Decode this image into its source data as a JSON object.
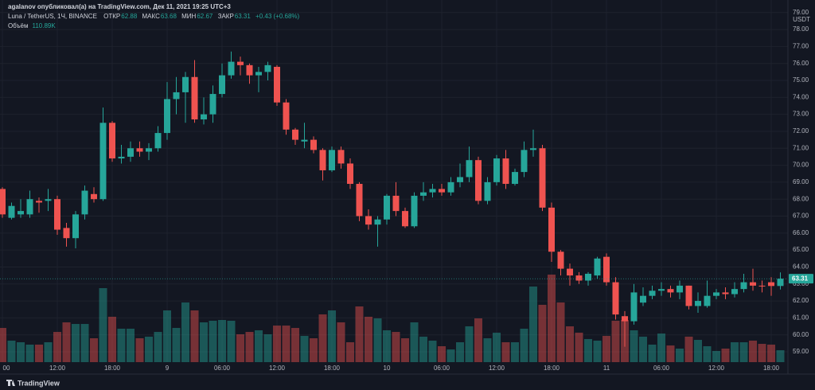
{
  "chart_data": {
    "type": "candlestick",
    "author_line": "agalanov опубликовал(а) на TradingView.com, Дек 11, 2021 19:25 UTC+3",
    "symbol": "Luna / TetherUS, 1Ч, BINANCE",
    "open_label": "ОТКР",
    "high_label": "МАКС",
    "low_label": "МИН",
    "close_label": "ЗАКР",
    "change_label": "+0.43 (+0.68%)",
    "volume_title": "Объём",
    "volume_label": "110.89K",
    "currency": "USDT",
    "logo": "TradingView",
    "up_color": "#26a69a",
    "down_color": "#ef5350",
    "grid": true,
    "ylim": [
      58.39,
      79.74
    ],
    "yticks": [
      {
        "value": 59,
        "label": "59.00"
      },
      {
        "value": 60,
        "label": "60.00"
      },
      {
        "value": 61,
        "label": "61.00"
      },
      {
        "value": 62,
        "label": "62.00"
      },
      {
        "value": 63,
        "label": "63.00"
      },
      {
        "value": 64,
        "label": "64.00"
      },
      {
        "value": 65,
        "label": "65.00"
      },
      {
        "value": 66,
        "label": "66.00"
      },
      {
        "value": 67,
        "label": "67.00"
      },
      {
        "value": 68,
        "label": "68.00"
      },
      {
        "value": 69,
        "label": "69.00"
      },
      {
        "value": 70,
        "label": "70.00"
      },
      {
        "value": 71,
        "label": "71.00"
      },
      {
        "value": 72,
        "label": "72.00"
      },
      {
        "value": 73,
        "label": "73.00"
      },
      {
        "value": 74,
        "label": "74.00"
      },
      {
        "value": 75,
        "label": "75.00"
      },
      {
        "value": 76,
        "label": "76.00"
      },
      {
        "value": 77,
        "label": "77.00"
      },
      {
        "value": 78,
        "label": "78.00"
      },
      {
        "value": 79,
        "label": "79.00"
      }
    ],
    "xticks": [
      {
        "value": 0,
        "label": "00"
      },
      {
        "value": 6,
        "label": "12:00"
      },
      {
        "value": 12,
        "label": "18:00"
      },
      {
        "value": 18,
        "label": "9"
      },
      {
        "value": 24,
        "label": "06:00"
      },
      {
        "value": 30,
        "label": "12:00"
      },
      {
        "value": 36,
        "label": "18:00"
      },
      {
        "value": 42,
        "label": "10"
      },
      {
        "value": 48,
        "label": "06:00"
      },
      {
        "value": 54,
        "label": "12:00"
      },
      {
        "value": 60,
        "label": "18:00"
      },
      {
        "value": 66,
        "label": "11"
      },
      {
        "value": 72,
        "label": "06:00"
      },
      {
        "value": 78,
        "label": "12:00"
      },
      {
        "value": 84,
        "label": "18:00"
      }
    ],
    "open": [
      68.6,
      66.9,
      67.1,
      67.1,
      67.9,
      67.9,
      68.0,
      66.3,
      65.7,
      67.1,
      68.3,
      68.0,
      72.5,
      70.4,
      70.5,
      71.0,
      70.8,
      71.0,
      71.9,
      73.9,
      74.3,
      75.2,
      72.7,
      73.0,
      74.2,
      75.3,
      76.1,
      75.9,
      75.3,
      75.5,
      75.8,
      73.7,
      72.1,
      71.4,
      71.5,
      70.9,
      69.7,
      70.9,
      70.1,
      68.9,
      67.0,
      66.5,
      66.8,
      68.2,
      67.3,
      66.4,
      68.2,
      68.4,
      68.6,
      68.4,
      69.0,
      69.3,
      70.3,
      67.9,
      69.0,
      70.4,
      68.9,
      69.6,
      70.9,
      71.0,
      67.5,
      64.9,
      63.9,
      63.5,
      63.2,
      63.5,
      64.6,
      63.1,
      61.1,
      60.8,
      61.9,
      62.3,
      62.6,
      62.7,
      62.5,
      62.9,
      61.7,
      61.7,
      62.3,
      62.5,
      62.4,
      62.7,
      63.1,
      62.9,
      63.1,
      62.88
    ],
    "high": [
      68.7,
      67.8,
      68.0,
      68.5,
      68.1,
      68.6,
      68.2,
      66.6,
      67.3,
      68.8,
      68.7,
      73.4,
      72.6,
      71.2,
      71.4,
      71.4,
      71.3,
      72.3,
      74.9,
      75.2,
      75.5,
      76.2,
      74.0,
      74.7,
      76.0,
      76.7,
      76.4,
      76.0,
      75.8,
      76.1,
      75.9,
      73.9,
      72.2,
      72.5,
      71.7,
      71.0,
      71.1,
      71.1,
      70.4,
      69.0,
      67.4,
      67.0,
      68.3,
      69.0,
      67.5,
      68.4,
      69.0,
      68.9,
      68.9,
      69.3,
      70.1,
      71.1,
      70.5,
      69.3,
      70.6,
      70.9,
      69.8,
      71.4,
      72.1,
      71.2,
      67.8,
      65.0,
      64.2,
      63.7,
      63.7,
      64.6,
      64.8,
      63.4,
      61.4,
      63.0,
      62.8,
      62.9,
      63.1,
      62.9,
      63.2,
      62.9,
      62.5,
      63.2,
      62.7,
      62.8,
      63.1,
      63.6,
      63.9,
      63.2,
      63.4,
      63.68
    ],
    "low": [
      66.9,
      66.8,
      66.9,
      66.9,
      67.2,
      67.3,
      65.9,
      65.2,
      65.1,
      66.8,
      67.8,
      67.9,
      70.2,
      70.1,
      70.2,
      70.5,
      70.3,
      70.8,
      71.5,
      73.0,
      72.5,
      72.5,
      72.4,
      72.5,
      74.0,
      75.1,
      75.3,
      74.8,
      74.3,
      75.0,
      73.5,
      71.8,
      71.2,
      71.0,
      70.7,
      69.1,
      69.6,
      69.8,
      68.6,
      66.7,
      66.2,
      65.2,
      66.5,
      67.0,
      66.3,
      66.3,
      67.9,
      68.1,
      68.2,
      68.2,
      68.7,
      69.0,
      67.7,
      67.7,
      68.8,
      68.6,
      68.8,
      69.3,
      70.5,
      67.3,
      64.3,
      63.5,
      62.9,
      63.0,
      62.9,
      63.3,
      62.9,
      60.9,
      59.3,
      60.6,
      61.7,
      62.1,
      62.3,
      62.2,
      62.1,
      61.5,
      61.3,
      61.6,
      62.1,
      62.1,
      62.2,
      62.5,
      62.6,
      62.5,
      62.3,
      62.67
    ],
    "close": [
      67.1,
      67.6,
      67.3,
      68.0,
      67.8,
      68.0,
      66.2,
      65.7,
      67.1,
      68.5,
      68.0,
      72.5,
      70.4,
      70.5,
      71.0,
      70.8,
      71.0,
      71.9,
      73.9,
      74.3,
      75.2,
      72.7,
      73.0,
      74.2,
      75.3,
      76.1,
      75.9,
      75.3,
      75.5,
      75.9,
      73.7,
      72.1,
      71.5,
      71.5,
      70.9,
      69.7,
      70.9,
      70.1,
      68.9,
      67.0,
      66.5,
      66.8,
      68.2,
      67.3,
      66.4,
      68.2,
      68.4,
      68.6,
      68.4,
      69.0,
      69.3,
      70.3,
      67.9,
      69.0,
      70.4,
      68.9,
      69.6,
      70.9,
      71.0,
      67.5,
      64.9,
      63.9,
      63.5,
      63.2,
      63.6,
      64.5,
      63.1,
      61.2,
      60.8,
      62.5,
      62.3,
      62.6,
      62.7,
      62.5,
      62.9,
      61.7,
      62.0,
      62.3,
      62.5,
      62.4,
      62.7,
      63.1,
      62.9,
      62.85,
      62.88,
      63.31
    ],
    "volume": [
      318,
      200,
      185,
      163,
      163,
      185,
      281,
      370,
      355,
      355,
      222,
      688,
      422,
      311,
      311,
      222,
      237,
      281,
      481,
      318,
      555,
      481,
      370,
      385,
      392,
      385,
      259,
      281,
      296,
      259,
      340,
      340,
      318,
      244,
      222,
      444,
      481,
      370,
      185,
      518,
      422,
      407,
      296,
      281,
      222,
      370,
      237,
      200,
      148,
      118,
      185,
      333,
      407,
      222,
      274,
      185,
      185,
      311,
      703,
      533,
      814,
      555,
      333,
      274,
      215,
      200,
      244,
      385,
      392,
      296,
      237,
      163,
      266,
      155,
      126,
      237,
      207,
      148,
      104,
      126,
      185,
      185,
      200,
      170,
      163,
      110.89
    ]
  }
}
